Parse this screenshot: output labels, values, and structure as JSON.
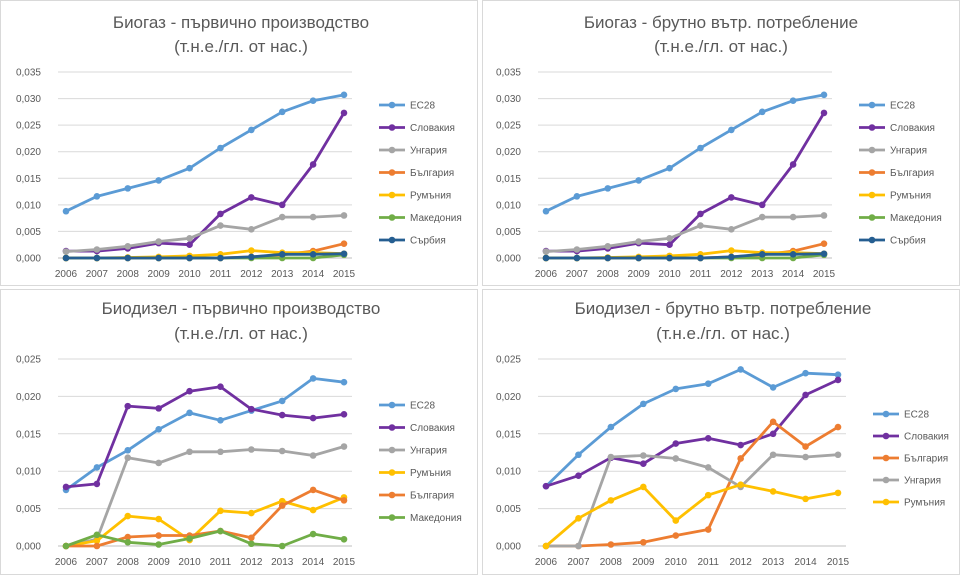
{
  "chart_data": [
    {
      "type": "line",
      "title": "Биогаз - първично производство",
      "subtitle": "(т.н.е./гл. от нас.)",
      "categories": [
        "2006",
        "2007",
        "2008",
        "2009",
        "2010",
        "2011",
        "2012",
        "2013",
        "2014",
        "2015"
      ],
      "ylim": [
        0,
        0.035
      ],
      "yticks": [
        "0,000",
        "0,005",
        "0,010",
        "0,015",
        "0,020",
        "0,025",
        "0,030",
        "0,035"
      ],
      "legend_position": "right",
      "grid": true,
      "series": [
        {
          "name": "ЕС28",
          "color": "#5B9BD5",
          "values": [
            0.0088,
            0.0116,
            0.0131,
            0.0146,
            0.0169,
            0.0207,
            0.0241,
            0.0275,
            0.0296,
            0.0307
          ]
        },
        {
          "name": "Словакия",
          "color": "#7030A0",
          "values": [
            0.0013,
            0.0013,
            0.0018,
            0.0028,
            0.0025,
            0.0083,
            0.0114,
            0.01,
            0.0176,
            0.0273
          ]
        },
        {
          "name": "Унгария",
          "color": "#A5A5A5",
          "values": [
            0.0012,
            0.0016,
            0.0022,
            0.0031,
            0.0037,
            0.0061,
            0.0054,
            0.0077,
            0.0077,
            0.008
          ]
        },
        {
          "name": "България",
          "color": "#ED7D31",
          "values": [
            0,
            0,
            0,
            0,
            0,
            0,
            0.0002,
            0.0006,
            0.0013,
            0.0027
          ]
        },
        {
          "name": "Румъния",
          "color": "#FFC000",
          "values": [
            0,
            0,
            0.0001,
            0.0002,
            0.0004,
            0.0007,
            0.0014,
            0.001,
            0.001,
            0.0008
          ]
        },
        {
          "name": "Македония",
          "color": "#70AD47",
          "values": [
            0,
            0,
            0,
            0,
            0,
            0,
            0,
            0,
            0,
            0.0006
          ]
        },
        {
          "name": "Сърбия",
          "color": "#255E91",
          "values": [
            0,
            0,
            0,
            0,
            0,
            0,
            0.0002,
            0.0007,
            0.0007,
            0.0008
          ]
        }
      ]
    },
    {
      "type": "line",
      "title": "Биогаз - брутно вътр. потребление",
      "subtitle": "(т.н.е./гл. от нас.)",
      "categories": [
        "2006",
        "2007",
        "2008",
        "2009",
        "2010",
        "2011",
        "2012",
        "2013",
        "2014",
        "2015"
      ],
      "ylim": [
        0,
        0.035
      ],
      "yticks": [
        "0,000",
        "0,005",
        "0,010",
        "0,015",
        "0,020",
        "0,025",
        "0,030",
        "0,035"
      ],
      "legend_position": "right",
      "grid": true,
      "series": [
        {
          "name": "ЕС28",
          "color": "#5B9BD5",
          "values": [
            0.0088,
            0.0116,
            0.0131,
            0.0146,
            0.0169,
            0.0207,
            0.0241,
            0.0275,
            0.0296,
            0.0307
          ]
        },
        {
          "name": "Словакия",
          "color": "#7030A0",
          "values": [
            0.0013,
            0.0013,
            0.0018,
            0.0028,
            0.0025,
            0.0083,
            0.0114,
            0.01,
            0.0176,
            0.0273
          ]
        },
        {
          "name": "Унгария",
          "color": "#A5A5A5",
          "values": [
            0.0012,
            0.0016,
            0.0022,
            0.0031,
            0.0037,
            0.0061,
            0.0054,
            0.0077,
            0.0077,
            0.008
          ]
        },
        {
          "name": "България",
          "color": "#ED7D31",
          "values": [
            0,
            0,
            0,
            0,
            0,
            0,
            0.0002,
            0.0006,
            0.0013,
            0.0027
          ]
        },
        {
          "name": "Румъния",
          "color": "#FFC000",
          "values": [
            0,
            0,
            0.0001,
            0.0002,
            0.0004,
            0.0007,
            0.0014,
            0.001,
            0.001,
            0.0008
          ]
        },
        {
          "name": "Македония",
          "color": "#70AD47",
          "values": [
            0,
            0,
            0,
            0,
            0,
            0,
            0,
            0,
            0,
            0.0006
          ]
        },
        {
          "name": "Сърбия",
          "color": "#255E91",
          "values": [
            0,
            0,
            0,
            0,
            0,
            0,
            0.0002,
            0.0007,
            0.0007,
            0.0008
          ]
        }
      ]
    },
    {
      "type": "line",
      "title": "Биодизел - първично производство",
      "subtitle": "(т.н.е./гл. от нас.)",
      "categories": [
        "2006",
        "2007",
        "2008",
        "2009",
        "2010",
        "2011",
        "2012",
        "2013",
        "2014",
        "2015"
      ],
      "ylim": [
        0,
        0.025
      ],
      "yticks": [
        "0,000",
        "0,005",
        "0,010",
        "0,015",
        "0,020",
        "0,025"
      ],
      "legend_position": "right",
      "grid": true,
      "series": [
        {
          "name": "ЕС28",
          "color": "#5B9BD5",
          "values": [
            0.0075,
            0.0105,
            0.0128,
            0.0156,
            0.0178,
            0.0168,
            0.0181,
            0.0194,
            0.0224,
            0.0219
          ]
        },
        {
          "name": "Словакия",
          "color": "#7030A0",
          "values": [
            0.0079,
            0.0083,
            0.0187,
            0.0184,
            0.0207,
            0.0213,
            0.0183,
            0.0175,
            0.0171,
            0.0176
          ]
        },
        {
          "name": "Унгария",
          "color": "#A5A5A5",
          "values": [
            0,
            0.0009,
            0.0118,
            0.0111,
            0.0126,
            0.0126,
            0.0129,
            0.0127,
            0.0121,
            0.0133
          ]
        },
        {
          "name": "Румъния",
          "color": "#FFC000",
          "values": [
            0,
            0.0007,
            0.004,
            0.0036,
            0.0008,
            0.0047,
            0.0044,
            0.006,
            0.0048,
            0.0065
          ]
        },
        {
          "name": "България",
          "color": "#ED7D31",
          "values": [
            0,
            0,
            0.0012,
            0.0014,
            0.0014,
            0.002,
            0.0011,
            0.0054,
            0.0075,
            0.0061
          ]
        },
        {
          "name": "Македония",
          "color": "#70AD47",
          "values": [
            0,
            0.0015,
            0.0005,
            0.0002,
            0.001,
            0.002,
            0.0003,
            0,
            0.0016,
            0.0009
          ]
        }
      ]
    },
    {
      "type": "line",
      "title": "Биодизел - брутно вътр. потребление",
      "subtitle": "(т.н.е./гл. от нас.)",
      "categories": [
        "2006",
        "2007",
        "2008",
        "2009",
        "2010",
        "2011",
        "2012",
        "2013",
        "2014",
        "2015"
      ],
      "ylim": [
        0,
        0.025
      ],
      "yticks": [
        "0,000",
        "0,005",
        "0,010",
        "0,015",
        "0,020",
        "0,025"
      ],
      "legend_position": "right",
      "grid": true,
      "series": [
        {
          "name": "ЕС28",
          "color": "#5B9BD5",
          "values": [
            0.008,
            0.0122,
            0.0159,
            0.019,
            0.021,
            0.0217,
            0.0236,
            0.0212,
            0.0231,
            0.0229
          ]
        },
        {
          "name": "Словакия",
          "color": "#7030A0",
          "values": [
            0.008,
            0.0094,
            0.0118,
            0.011,
            0.0137,
            0.0144,
            0.0135,
            0.015,
            0.0202,
            0.0222
          ]
        },
        {
          "name": "България",
          "color": "#ED7D31",
          "values": [
            0,
            0,
            0.0002,
            0.0005,
            0.0014,
            0.0022,
            0.0117,
            0.0166,
            0.0133,
            0.0159
          ]
        },
        {
          "name": "Унгария",
          "color": "#A5A5A5",
          "values": [
            0,
            0,
            0.0119,
            0.0121,
            0.0117,
            0.0105,
            0.0079,
            0.0122,
            0.0119,
            0.0122
          ]
        },
        {
          "name": "Румъния",
          "color": "#FFC000",
          "values": [
            0,
            0.0037,
            0.0061,
            0.0079,
            0.0034,
            0.0068,
            0.0082,
            0.0073,
            0.0063,
            0.0071
          ]
        }
      ]
    }
  ]
}
